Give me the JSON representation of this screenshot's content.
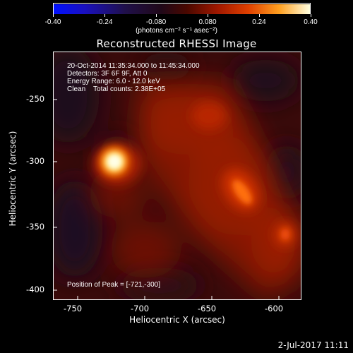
{
  "colorbar": {
    "ticks": [
      "-0.40",
      "-0.24",
      "-0.080",
      "0.080",
      "0.24",
      "0.40"
    ],
    "units": "(photons cm⁻² s⁻¹ asec⁻²)"
  },
  "title": "Reconstructed RHESSI Image",
  "info": {
    "time": "20-Oct-2014 11:35:34.000 to 11:45:34.000",
    "detectors": "Detectors: 3F 6F 9F, Att 0",
    "energy": "Energy Range: 6.0 - 12.0 keV",
    "clean": "Clean    Total counts: 2.38E+05",
    "peak": "Position of Peak = [-721,-300]"
  },
  "axes": {
    "xlabel": "Heliocentric X (arcsec)",
    "ylabel": "Heliocentric Y (arcsec)",
    "xticks": [
      "-750",
      "-700",
      "-650",
      "-600"
    ],
    "yticks": [
      "-250",
      "-300",
      "-350",
      "-400"
    ]
  },
  "footer": "2-Jul-2017 11:11",
  "colors": {
    "background": "#000000",
    "text": "#ffffff",
    "peak": "#fff2a0",
    "source": "#c82800"
  }
}
